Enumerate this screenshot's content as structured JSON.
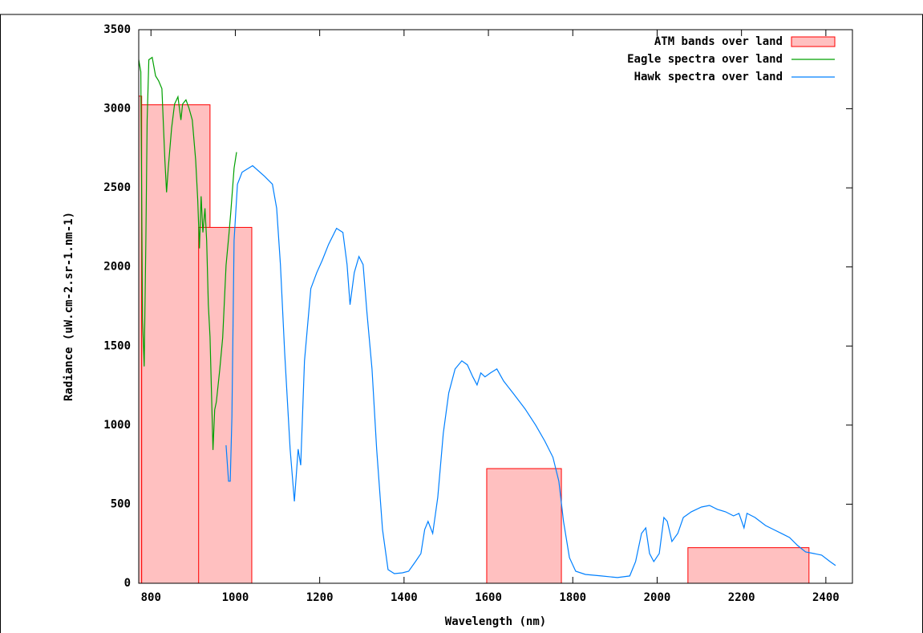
{
  "chart_data": {
    "type": "mixed",
    "x_label": "Wavelength (nm)",
    "y_label": "Radiance (uW.cm-2.sr-1.nm-1)",
    "xlim": [
      771,
      2463
    ],
    "ylim": [
      0,
      3500
    ],
    "xticks": [
      800,
      1000,
      1200,
      1400,
      1600,
      1800,
      2000,
      2200,
      2400
    ],
    "yticks": [
      0,
      500,
      1000,
      1500,
      2000,
      2500,
      3000,
      3500
    ],
    "legend": "top-right",
    "series": [
      {
        "name": "ATM bands over land",
        "type": "box",
        "color": "#ff0000",
        "fill": "#ffc0c0",
        "x_start": [
          771,
          778,
          913,
          1596,
          2073
        ],
        "x_end": [
          778,
          940,
          1039,
          1773,
          2360
        ],
        "values": [
          3080,
          3025,
          2250,
          725,
          225
        ]
      },
      {
        "name": "Eagle spectra over land",
        "type": "line",
        "color": "#00a000",
        "x": [
          771,
          776,
          780,
          784,
          788,
          791,
          795,
          803,
          811,
          818,
          826,
          833,
          837,
          841,
          849,
          856,
          864,
          871,
          875,
          883,
          890,
          898,
          906,
          911,
          915,
          919,
          923,
          928,
          932,
          936,
          940,
          944,
          947,
          951,
          955,
          963,
          970,
          978,
          985,
          989,
          997,
          1003
        ],
        "values": [
          3310,
          3234,
          1675,
          1371,
          2168,
          2929,
          3310,
          3325,
          3208,
          3178,
          3127,
          2675,
          2472,
          2624,
          2878,
          3030,
          3076,
          2929,
          3030,
          3056,
          3005,
          2929,
          2675,
          2421,
          2117,
          2447,
          2218,
          2371,
          2168,
          1761,
          1558,
          1152,
          843,
          1096,
          1147,
          1350,
          1553,
          2010,
          2213,
          2340,
          2624,
          2726
        ]
      },
      {
        "name": "Hawk spectra over land",
        "type": "line",
        "color": "#0080ff",
        "x": [
          978,
          984,
          988,
          992,
          997,
          1005,
          1016,
          1041,
          1069,
          1088,
          1098,
          1107,
          1117,
          1130,
          1140,
          1149,
          1155,
          1164,
          1179,
          1193,
          1206,
          1221,
          1240,
          1255,
          1265,
          1272,
          1282,
          1293,
          1303,
          1312,
          1324,
          1335,
          1349,
          1362,
          1377,
          1396,
          1411,
          1427,
          1440,
          1449,
          1457,
          1468,
          1480,
          1493,
          1506,
          1521,
          1537,
          1550,
          1563,
          1573,
          1582,
          1592,
          1605,
          1620,
          1636,
          1658,
          1687,
          1712,
          1734,
          1753,
          1767,
          1778,
          1792,
          1807,
          1830,
          1868,
          1906,
          1935,
          1949,
          1963,
          1973,
          1982,
          1992,
          2005,
          2016,
          2024,
          2035,
          2049,
          2062,
          2081,
          2105,
          2124,
          2143,
          2162,
          2181,
          2194,
          2206,
          2213,
          2232,
          2257,
          2276,
          2295,
          2314,
          2333,
          2352,
          2371,
          2390,
          2410,
          2423
        ],
        "values": [
          873,
          645,
          645,
          1051,
          2168,
          2523,
          2599,
          2640,
          2574,
          2523,
          2371,
          2015,
          1457,
          848,
          518,
          848,
          746,
          1406,
          1863,
          1964,
          2041,
          2142,
          2244,
          2218,
          2015,
          1761,
          1964,
          2066,
          2015,
          1711,
          1355,
          848,
          340,
          86,
          61,
          66,
          76,
          137,
          188,
          340,
          391,
          315,
          543,
          949,
          1203,
          1355,
          1406,
          1381,
          1305,
          1254,
          1330,
          1305,
          1330,
          1355,
          1279,
          1203,
          1102,
          1000,
          898,
          797,
          645,
          391,
          162,
          76,
          56,
          46,
          36,
          46,
          137,
          315,
          350,
          188,
          137,
          188,
          416,
          391,
          264,
          315,
          416,
          452,
          482,
          492,
          467,
          452,
          426,
          442,
          350,
          442,
          416,
          365,
          340,
          315,
          289,
          239,
          198,
          188,
          178,
          137,
          112
        ]
      }
    ]
  }
}
